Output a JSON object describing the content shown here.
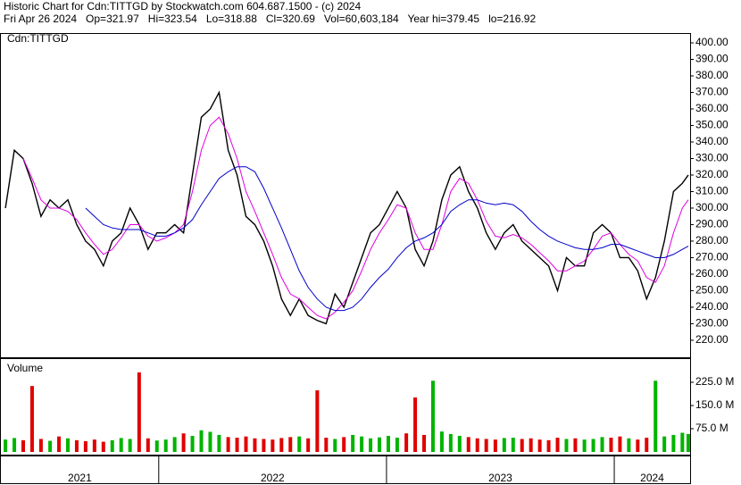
{
  "header": {
    "line1": "Historic Chart for Cdn:TITTGD by Stockwatch.com 604.687.1500 - (c) 2024",
    "line2": "Fri Apr 26 2024   Op=321.97   Hi=323.54   Lo=318.88   Cl=320.69   Vol=60,603,184   Year hi=379.45   lo=216.92"
  },
  "chart_data": [
    {
      "type": "line",
      "x": [
        2021.327,
        2021.366,
        2021.405,
        2021.444,
        2021.483,
        2021.523,
        2021.562,
        2021.601,
        2021.64,
        2021.679,
        2021.718,
        2021.757,
        2021.796,
        2021.835,
        2021.874,
        2021.914,
        2021.953,
        2021.992,
        2022.031,
        2022.07,
        2022.109,
        2022.148,
        2022.187,
        2022.226,
        2022.265,
        2022.305,
        2022.344,
        2022.383,
        2022.422,
        2022.461,
        2022.5,
        2022.539,
        2022.578,
        2022.617,
        2022.656,
        2022.696,
        2022.735,
        2022.774,
        2022.813,
        2022.852,
        2022.891,
        2022.93,
        2022.969,
        2023.008,
        2023.047,
        2023.087,
        2023.126,
        2023.165,
        2023.204,
        2023.243,
        2023.282,
        2023.321,
        2023.36,
        2023.399,
        2023.438,
        2023.478,
        2023.517,
        2023.556,
        2023.595,
        2023.634,
        2023.673,
        2023.712,
        2023.751,
        2023.79,
        2023.829,
        2023.869,
        2023.908,
        2023.947,
        2023.986,
        2024.025,
        2024.064,
        2024.103,
        2024.142,
        2024.181,
        2024.22,
        2024.26,
        2024.299,
        2024.325
      ],
      "xlim": [
        2021.307,
        2024.333
      ],
      "xticks": [
        2022,
        2023,
        2024
      ],
      "year_labels": [
        "2021",
        "2022",
        "2023",
        "2024"
      ],
      "series": [
        {
          "name": "Cdn:TITTGD",
          "color": "#000000",
          "values": [
            300,
            335,
            330,
            315,
            295,
            305,
            300,
            305,
            290,
            280,
            275,
            265,
            280,
            285,
            300,
            290,
            275,
            285,
            285,
            290,
            285,
            320,
            355,
            360,
            370,
            335,
            320,
            295,
            290,
            280,
            265,
            245,
            235,
            245,
            235,
            232,
            230,
            248,
            240,
            255,
            270,
            285,
            290,
            300,
            310,
            300,
            275,
            265,
            280,
            305,
            320,
            325,
            310,
            300,
            285,
            275,
            285,
            290,
            280,
            275,
            270,
            265,
            250,
            270,
            265,
            265,
            285,
            290,
            285,
            270,
            270,
            262,
            245,
            258,
            280,
            310,
            315,
            320
          ]
        },
        {
          "color": "#e000e0",
          "values": [
            null,
            null,
            330,
            318,
            305,
            300,
            300,
            298,
            293,
            285,
            278,
            272,
            275,
            282,
            290,
            290,
            283,
            280,
            282,
            285,
            290,
            310,
            335,
            350,
            355,
            345,
            330,
            310,
            298,
            285,
            272,
            258,
            248,
            245,
            240,
            235,
            233,
            237,
            243,
            250,
            262,
            275,
            285,
            293,
            302,
            300,
            285,
            275,
            275,
            290,
            310,
            318,
            315,
            305,
            292,
            283,
            282,
            284,
            282,
            278,
            273,
            268,
            262,
            262,
            265,
            268,
            275,
            283,
            285,
            278,
            272,
            268,
            258,
            255,
            265,
            285,
            300,
            305
          ]
        },
        {
          "color": "#0000cc",
          "values": [
            null,
            null,
            null,
            null,
            null,
            null,
            null,
            null,
            null,
            300,
            295,
            290,
            288,
            287,
            287,
            287,
            285,
            283,
            283,
            285,
            288,
            293,
            302,
            310,
            318,
            322,
            325,
            325,
            322,
            312,
            300,
            288,
            275,
            262,
            252,
            245,
            240,
            238,
            238,
            240,
            245,
            252,
            258,
            263,
            270,
            276,
            280,
            282,
            285,
            290,
            298,
            302,
            305,
            305,
            303,
            302,
            303,
            302,
            298,
            292,
            287,
            283,
            280,
            278,
            276,
            275,
            275,
            276,
            278,
            278,
            276,
            274,
            272,
            270,
            270,
            272,
            275,
            277
          ]
        }
      ],
      "ylim": [
        209.7,
        405.4
      ],
      "yticks": [
        {
          "value": 220,
          "label": "220.00"
        },
        {
          "value": 230,
          "label": "230.00"
        },
        {
          "value": 240,
          "label": "240.00"
        },
        {
          "value": 250,
          "label": "250.00"
        },
        {
          "value": 260,
          "label": "260.00"
        },
        {
          "value": 270,
          "label": "270.00"
        },
        {
          "value": 280,
          "label": "280.00"
        },
        {
          "value": 290,
          "label": "290.00"
        },
        {
          "value": 300,
          "label": "300.00"
        },
        {
          "value": 310,
          "label": "310.00"
        },
        {
          "value": 320,
          "label": "320.00"
        },
        {
          "value": 330,
          "label": "330.00"
        },
        {
          "value": 340,
          "label": "340.00"
        },
        {
          "value": 350,
          "label": "350.00"
        },
        {
          "value": 360,
          "label": "360.00"
        },
        {
          "value": 370,
          "label": "370.00"
        },
        {
          "value": 380,
          "label": "380.00"
        },
        {
          "value": 390,
          "label": "390.00"
        },
        {
          "value": 400,
          "label": "400.00"
        }
      ]
    },
    {
      "type": "bar",
      "name": "Volume",
      "up_color": "#00b400",
      "down_color": "#e00000",
      "values": [
        40,
        45,
        38,
        213,
        42,
        36,
        50,
        44,
        38,
        35,
        40,
        33,
        38,
        45,
        42,
        257,
        44,
        37,
        40,
        48,
        60,
        52,
        70,
        65,
        55,
        48,
        46,
        50,
        44,
        42,
        40,
        45,
        48,
        50,
        44,
        199,
        46,
        42,
        48,
        55,
        50,
        44,
        47,
        52,
        46,
        60,
        176,
        55,
        230,
        66,
        58,
        52,
        48,
        44,
        42,
        40,
        45,
        46,
        42,
        44,
        40,
        38,
        46,
        42,
        44,
        40,
        42,
        48,
        46,
        50,
        44,
        40,
        46,
        230,
        50,
        55,
        62,
        58
      ],
      "ylim": [
        -11.5,
        300
      ],
      "yticks": [
        {
          "value": 75,
          "label": "75.0 M"
        },
        {
          "value": 150,
          "label": "150.0 M"
        },
        {
          "value": 225,
          "label": "225.0 M"
        }
      ]
    }
  ]
}
